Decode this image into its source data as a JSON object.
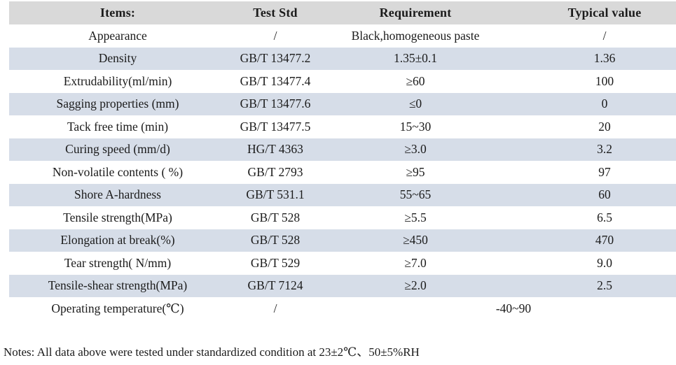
{
  "table": {
    "columns": [
      "Items:",
      "Test Std",
      "Requirement",
      "Typical value"
    ],
    "rows": [
      {
        "item": "Appearance",
        "test_std": "/",
        "requirement": "Black,homogeneous paste",
        "typical_value": "/"
      },
      {
        "item": "Density",
        "test_std": "GB/T 13477.2",
        "requirement": "1.35±0.1",
        "typical_value": "1.36"
      },
      {
        "item": "Extrudability(ml/min)",
        "test_std": "GB/T 13477.4",
        "requirement": "≥60",
        "typical_value": "100"
      },
      {
        "item": "Sagging properties (mm)",
        "test_std": "GB/T 13477.6",
        "requirement": "≤0",
        "typical_value": "0"
      },
      {
        "item": "Tack free time (min)",
        "test_std": "GB/T 13477.5",
        "requirement": "15~30",
        "typical_value": "20"
      },
      {
        "item": "Curing speed (mm/d)",
        "test_std": "HG/T 4363",
        "requirement": "≥3.0",
        "typical_value": "3.2"
      },
      {
        "item": "Non-volatile contents ( %)",
        "test_std": "GB/T 2793",
        "requirement": "≥95",
        "typical_value": "97"
      },
      {
        "item": "Shore A-hardness",
        "test_std": "GB/T 531.1",
        "requirement": "55~65",
        "typical_value": "60"
      },
      {
        "item": "Tensile strength(MPa)",
        "test_std": "GB/T 528",
        "requirement": "≥5.5",
        "typical_value": "6.5"
      },
      {
        "item": "Elongation at break(%)",
        "test_std": "GB/T 528",
        "requirement": "≥450",
        "typical_value": "470"
      },
      {
        "item": "Tear strength( N/mm)",
        "test_std": "GB/T 529",
        "requirement": "≥7.0",
        "typical_value": "9.0"
      },
      {
        "item": "Tensile-shear strength(MPa)",
        "test_std": "GB/T 7124",
        "requirement": "≥2.0",
        "typical_value": "2.5"
      },
      {
        "item": "Operating temperature(℃)",
        "test_std": "/",
        "requirement": "-40~90",
        "typical_value": null
      }
    ]
  },
  "notes": "Notes: All data above were tested under standardized condition at 23±2℃、50±5%RH",
  "colors": {
    "header_bg": "#d9d9d9",
    "band_bg": "#d6dde8",
    "text": "#1b1b1b"
  }
}
